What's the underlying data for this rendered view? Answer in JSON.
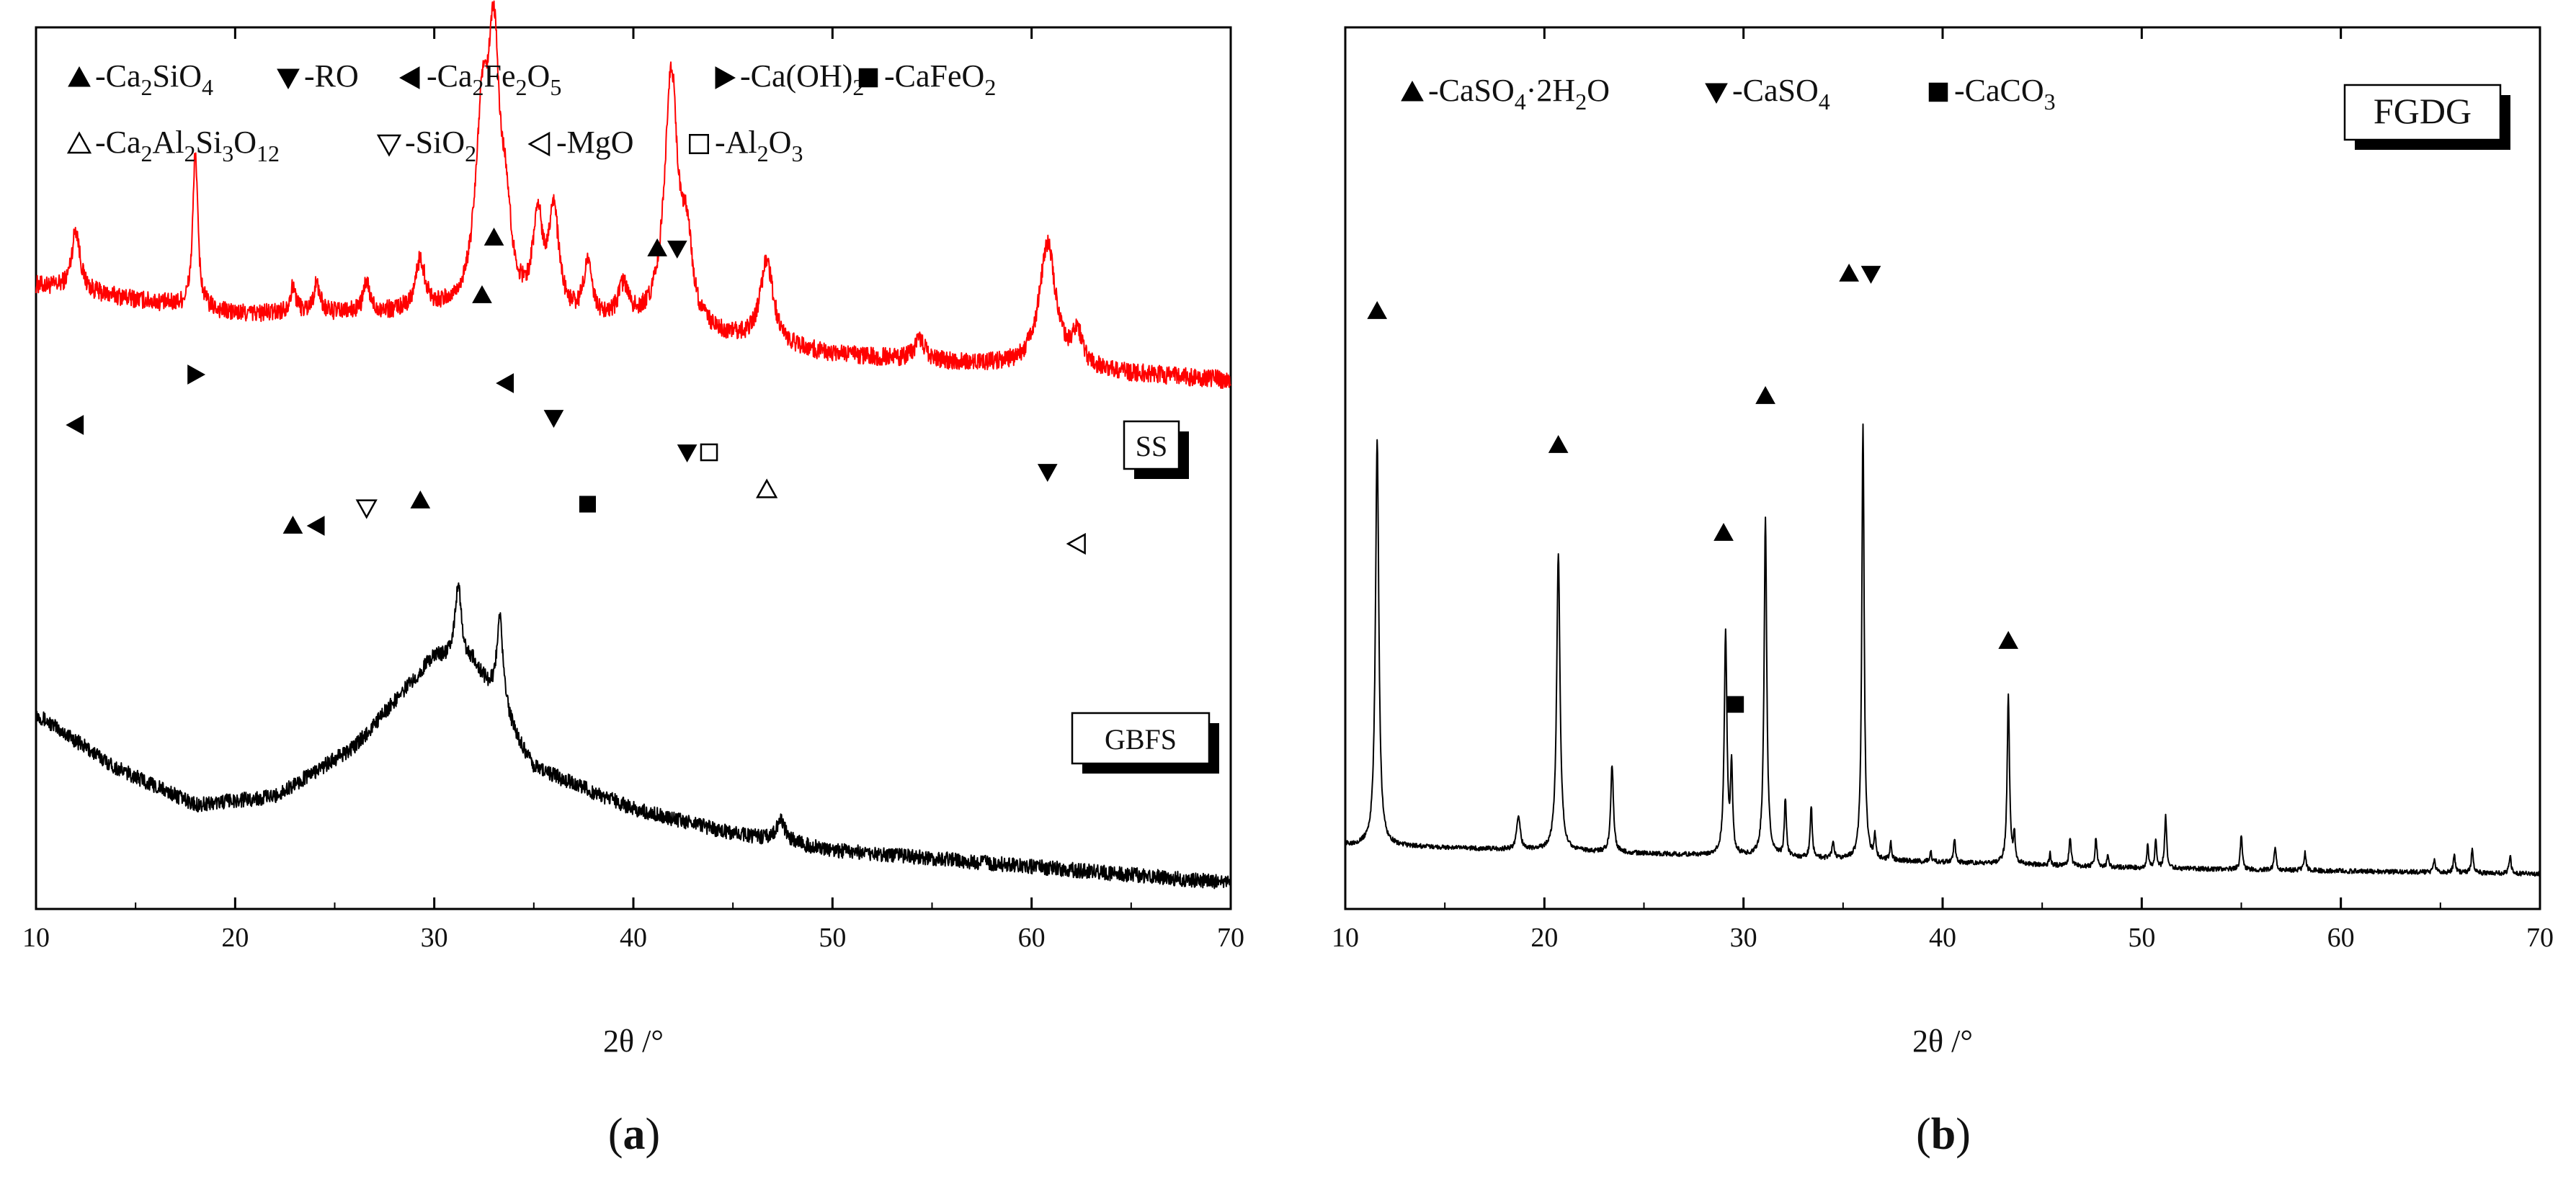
{
  "chart_data": [
    {
      "type": "line",
      "panel_label": "(a)",
      "xlabel": "2θ /°",
      "ylabel": "",
      "xlim": [
        10,
        70
      ],
      "x_ticks": [
        10,
        20,
        30,
        40,
        50,
        60,
        70
      ],
      "grid": false,
      "legend_position": "top-left",
      "legend": [
        {
          "symbol": "filled-up-triangle",
          "text": "-Ca₂SiO₄"
        },
        {
          "symbol": "filled-down-triangle",
          "text": "-RO"
        },
        {
          "symbol": "filled-left-triangle",
          "text": "-Ca₂Fe₂O₅"
        },
        {
          "symbol": "filled-right-triangle",
          "text": "-Ca(OH)₂"
        },
        {
          "symbol": "filled-square",
          "text": "-CaFeO₂"
        },
        {
          "symbol": "open-up-triangle",
          "text": "-Ca₂Al₂Si₃O₁₂"
        },
        {
          "symbol": "open-down-triangle",
          "text": "-SiO₂"
        },
        {
          "symbol": "open-left-triangle",
          "text": "-MgO"
        },
        {
          "symbol": "open-square",
          "text": "-Al₂O₃"
        }
      ],
      "series": [
        {
          "name": "SS",
          "color": "#ff0000",
          "baseline": [
            [
              10,
              0.4
            ],
            [
              20,
              0.33
            ],
            [
              30,
              0.33
            ],
            [
              40,
              0.3
            ],
            [
              50,
              0.23
            ],
            [
              60,
              0.2
            ],
            [
              70,
              0.17
            ]
          ],
          "peaks": [
            [
              12,
              0.15,
              0.25
            ],
            [
              18,
              0.38,
              0.15
            ],
            [
              22.9,
              0.06,
              0.2
            ],
            [
              24.1,
              0.07,
              0.2
            ],
            [
              26.6,
              0.07,
              0.2
            ],
            [
              29.3,
              0.12,
              0.3
            ],
            [
              32.4,
              0.42,
              0.4
            ],
            [
              33.0,
              0.58,
              0.35
            ],
            [
              33.6,
              0.18,
              0.3
            ],
            [
              35.2,
              0.22,
              0.3
            ],
            [
              36.0,
              0.25,
              0.3
            ],
            [
              37.7,
              0.13,
              0.25
            ],
            [
              39.5,
              0.08,
              0.3
            ],
            [
              41.9,
              0.62,
              0.4
            ],
            [
              42.7,
              0.18,
              0.3
            ],
            [
              46.7,
              0.2,
              0.4
            ],
            [
              54.4,
              0.05,
              0.3
            ],
            [
              60.8,
              0.3,
              0.5
            ],
            [
              62.3,
              0.08,
              0.3
            ]
          ],
          "noise": 0.022
        },
        {
          "name": "GBFS",
          "color": "#000000",
          "baseline": [
            [
              10,
              0.43
            ],
            [
              14,
              0.3
            ],
            [
              18,
              0.21
            ],
            [
              22,
              0.23
            ],
            [
              26,
              0.35
            ],
            [
              30,
              0.57
            ],
            [
              32,
              0.55
            ],
            [
              35,
              0.3
            ],
            [
              40,
              0.2
            ],
            [
              45,
              0.14
            ],
            [
              50,
              0.1
            ],
            [
              60,
              0.06
            ],
            [
              70,
              0.02
            ]
          ],
          "peaks": [
            [
              31.2,
              0.18,
              0.2
            ],
            [
              33.3,
              0.22,
              0.2
            ],
            [
              47.4,
              0.05,
              0.3
            ]
          ],
          "noise": 0.018
        }
      ],
      "sample_labels": [
        "SS",
        "GBFS"
      ],
      "peak_markers": [
        {
          "x": 12,
          "symbol": "filled-left-triangle"
        },
        {
          "x": 18,
          "symbol": "filled-right-triangle"
        },
        {
          "x": 22.9,
          "symbol": "filled-up-triangle"
        },
        {
          "x": 24.1,
          "symbol": "filled-left-triangle"
        },
        {
          "x": 26.6,
          "symbol": "open-down-triangle"
        },
        {
          "x": 29.3,
          "symbol": "filled-up-triangle"
        },
        {
          "x": 32.4,
          "symbol": "filled-up-triangle"
        },
        {
          "x": 33.0,
          "symbol": "filled-up-triangle"
        },
        {
          "x": 33.6,
          "symbol": "filled-left-triangle"
        },
        {
          "x": 36.0,
          "symbol": "filled-down-triangle"
        },
        {
          "x": 37.7,
          "symbol": "filled-square"
        },
        {
          "x": 41.2,
          "symbol": "filled-up-triangle"
        },
        {
          "x": 42.2,
          "symbol": "filled-down-triangle"
        },
        {
          "x": 42.7,
          "symbol": "filled-down-triangle"
        },
        {
          "x": 43.8,
          "symbol": "open-square"
        },
        {
          "x": 46.7,
          "symbol": "open-up-triangle"
        },
        {
          "x": 60.8,
          "symbol": "filled-down-triangle"
        },
        {
          "x": 62.3,
          "symbol": "open-left-triangle"
        }
      ]
    },
    {
      "type": "line",
      "panel_label": "(b)",
      "xlabel": "2θ /°",
      "ylabel": "",
      "xlim": [
        10,
        70
      ],
      "x_ticks": [
        10,
        20,
        30,
        40,
        50,
        60,
        70
      ],
      "grid": false,
      "legend_position": "top-left",
      "legend": [
        {
          "symbol": "filled-up-triangle",
          "text": "-CaSO₄·2H₂O"
        },
        {
          "symbol": "filled-down-triangle",
          "text": "-CaSO₄"
        },
        {
          "symbol": "filled-square",
          "text": "-CaCO₃"
        }
      ],
      "series": [
        {
          "name": "FGDG",
          "color": "#000000",
          "baseline": [
            [
              10,
              0.08
            ],
            [
              20,
              0.07
            ],
            [
              30,
              0.06
            ],
            [
              40,
              0.05
            ],
            [
              50,
              0.04
            ],
            [
              60,
              0.035
            ],
            [
              70,
              0.03
            ]
          ],
          "peaks": [
            [
              11.6,
              0.7,
              0.1
            ],
            [
              18.7,
              0.06,
              0.1
            ],
            [
              20.7,
              0.51,
              0.1
            ],
            [
              23.4,
              0.15,
              0.08
            ],
            [
              29.1,
              0.38,
              0.08
            ],
            [
              29.4,
              0.15,
              0.06
            ],
            [
              31.1,
              0.58,
              0.08
            ],
            [
              32.1,
              0.1,
              0.06
            ],
            [
              33.4,
              0.09,
              0.06
            ],
            [
              34.5,
              0.03,
              0.06
            ],
            [
              36.0,
              0.75,
              0.07
            ],
            [
              36.6,
              0.04,
              0.05
            ],
            [
              37.4,
              0.03,
              0.05
            ],
            [
              39.4,
              0.02,
              0.05
            ],
            [
              40.6,
              0.04,
              0.06
            ],
            [
              43.3,
              0.29,
              0.07
            ],
            [
              43.6,
              0.05,
              0.05
            ],
            [
              45.4,
              0.02,
              0.05
            ],
            [
              46.4,
              0.05,
              0.06
            ],
            [
              47.7,
              0.05,
              0.06
            ],
            [
              48.3,
              0.02,
              0.05
            ],
            [
              50.3,
              0.04,
              0.05
            ],
            [
              50.7,
              0.05,
              0.05
            ],
            [
              51.2,
              0.09,
              0.06
            ],
            [
              55.0,
              0.06,
              0.06
            ],
            [
              56.7,
              0.04,
              0.06
            ],
            [
              58.2,
              0.03,
              0.06
            ],
            [
              64.7,
              0.02,
              0.06
            ],
            [
              65.7,
              0.03,
              0.06
            ],
            [
              66.6,
              0.04,
              0.06
            ],
            [
              68.5,
              0.03,
              0.06
            ]
          ],
          "noise": 0.004
        }
      ],
      "sample_labels": [
        "FGDG"
      ],
      "peak_markers": [
        {
          "x": 11.6,
          "symbol": "filled-up-triangle"
        },
        {
          "x": 20.7,
          "symbol": "filled-up-triangle"
        },
        {
          "x": 29.0,
          "symbol": "filled-up-triangle"
        },
        {
          "x": 29.6,
          "symbol": "filled-square"
        },
        {
          "x": 31.1,
          "symbol": "filled-up-triangle"
        },
        {
          "x": 35.3,
          "symbol": "filled-up-triangle"
        },
        {
          "x": 36.4,
          "symbol": "filled-down-triangle"
        },
        {
          "x": 43.3,
          "symbol": "filled-up-triangle"
        }
      ]
    }
  ]
}
